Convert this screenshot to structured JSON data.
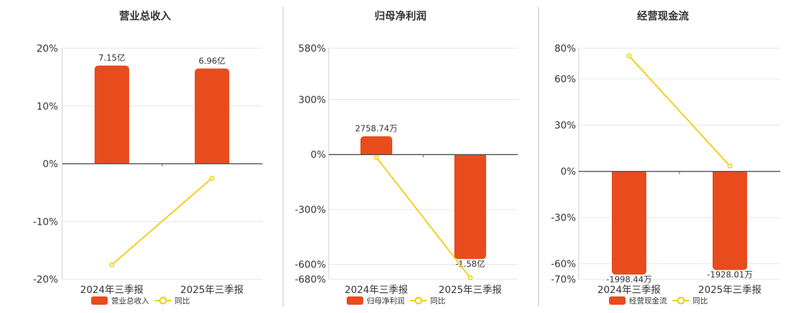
{
  "colors": {
    "bar": "#e84c1c",
    "line": "#f0cc00",
    "grid": "#e4e4e4",
    "axis": "#555555",
    "divider": "#bbbbbb",
    "text": "#333333"
  },
  "chart_data": [
    {
      "type": "bar",
      "title": "营业总收入",
      "categories": [
        "2024年三季报",
        "2025年三季报"
      ],
      "y_ticks": [
        "20%",
        "10%",
        "0%",
        "-10%",
        "-20%"
      ],
      "ylim": [
        -20,
        20
      ],
      "series": [
        {
          "name": "营业总收入",
          "kind": "bar",
          "values": [
            17,
            16.5
          ],
          "labels": [
            "7.15亿",
            "6.96亿"
          ]
        },
        {
          "name": "同比",
          "kind": "line",
          "values": [
            -17.5,
            -2.5
          ]
        }
      ],
      "legend_position": "bottom",
      "grid": true
    },
    {
      "type": "bar",
      "title": "归母净利润",
      "categories": [
        "2024年三季报",
        "2025年三季报"
      ],
      "y_ticks": [
        "580%",
        "300%",
        "0%",
        "-300%",
        "-600%",
        "-680%"
      ],
      "ylim": [
        -680,
        580
      ],
      "series": [
        {
          "name": "归母净利润",
          "kind": "bar",
          "values": [
            100,
            -570
          ],
          "labels": [
            "2758.74万",
            "-1.58亿"
          ]
        },
        {
          "name": "同比",
          "kind": "line",
          "values": [
            -15,
            -672
          ]
        }
      ],
      "legend_position": "bottom",
      "grid": true
    },
    {
      "type": "bar",
      "title": "经营现金流",
      "categories": [
        "2024年三季报",
        "2025年三季报"
      ],
      "y_ticks": [
        "80%",
        "60%",
        "30%",
        "0%",
        "-30%",
        "-60%",
        "-70%"
      ],
      "ylim": [
        -70,
        80
      ],
      "series": [
        {
          "name": "经营现金流",
          "kind": "bar",
          "values": [
            -67,
            -64
          ],
          "labels": [
            "-1998.44万",
            "-1928.01万"
          ]
        },
        {
          "name": "同比",
          "kind": "line",
          "values": [
            75,
            3.5
          ]
        }
      ],
      "legend_position": "bottom",
      "grid": true
    }
  ]
}
